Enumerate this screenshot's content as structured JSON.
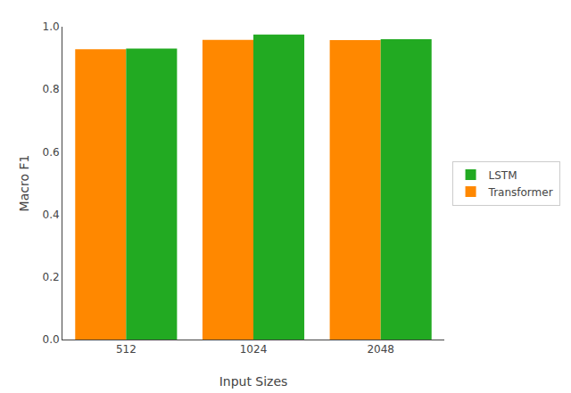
{
  "chart_data": {
    "type": "bar",
    "xlabel": "Input Sizes",
    "ylabel": "Macro F1",
    "categories": [
      "512",
      "1024",
      "2048"
    ],
    "series": [
      {
        "name": "Transformer",
        "color": "#ff8800",
        "values": [
          0.928,
          0.958,
          0.957
        ]
      },
      {
        "name": "LSTM",
        "color": "#22aa22",
        "values": [
          0.93,
          0.975,
          0.96
        ]
      }
    ],
    "ylim": [
      0.0,
      1.0
    ],
    "yticks": [
      {
        "value": 0.0,
        "label": "0.0"
      },
      0.2,
      0.4,
      0.6,
      0.8,
      {
        "value": 1.0,
        "label": "1.0"
      }
    ],
    "grid": false,
    "legend": "right"
  }
}
